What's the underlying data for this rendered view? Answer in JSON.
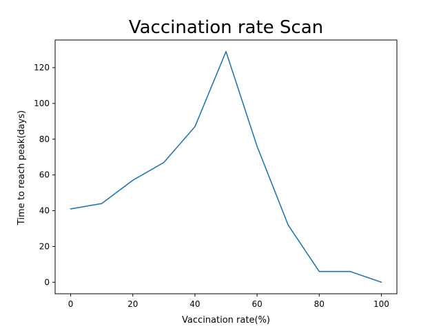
{
  "chart_data": {
    "type": "line",
    "title": "Vaccination rate Scan",
    "xlabel": "Vaccination rate(%)",
    "ylabel": "Time to reach peak(days)",
    "x": [
      0,
      10,
      20,
      30,
      40,
      50,
      60,
      70,
      80,
      90,
      100
    ],
    "series": [
      {
        "values": [
          41,
          44,
          57,
          67,
          87,
          129,
          76,
          32,
          6,
          6,
          0
        ]
      }
    ],
    "xlim": [
      -5,
      105
    ],
    "ylim": [
      -6.45,
      135.45
    ],
    "xticks": [
      0,
      20,
      40,
      60,
      80,
      100
    ],
    "yticks": [
      0,
      20,
      40,
      60,
      80,
      100,
      120
    ],
    "grid": false,
    "line_color": "#1f77b4"
  }
}
